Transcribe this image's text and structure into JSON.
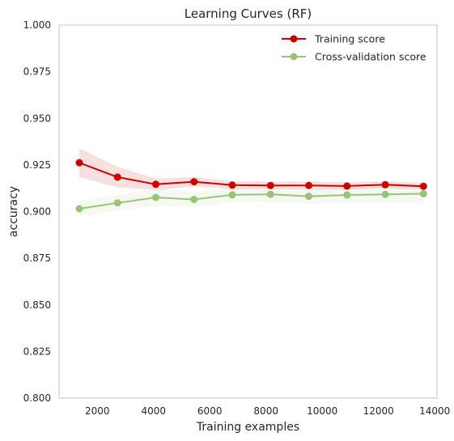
{
  "chart_data": {
    "type": "line",
    "title": "Learning Curves (RF)",
    "xlabel": "Training examples",
    "ylabel": "accuracy",
    "xlim": [
      640,
      14080
    ],
    "ylim": [
      0.8,
      1.0
    ],
    "xticks": [
      2000,
      4000,
      6000,
      8000,
      10000,
      12000,
      14000
    ],
    "yticks": [
      0.8,
      0.825,
      0.85,
      0.875,
      0.9,
      0.925,
      0.95,
      0.975,
      1.0
    ],
    "grid": false,
    "legend_position": "top-right",
    "x": [
      1360,
      2720,
      4080,
      5440,
      6800,
      8160,
      9520,
      10880,
      12240,
      13600
    ],
    "series": [
      {
        "name": "Training score",
        "color": "#cc0000",
        "values": [
          0.9262,
          0.9185,
          0.9146,
          0.916,
          0.9142,
          0.914,
          0.914,
          0.9137,
          0.9144,
          0.9136
        ],
        "band_lower": [
          0.9185,
          0.913,
          0.9115,
          0.9135,
          0.912,
          0.912,
          0.9118,
          0.9117,
          0.9125,
          0.9118
        ],
        "band_upper": [
          0.934,
          0.924,
          0.9177,
          0.9185,
          0.9164,
          0.916,
          0.9162,
          0.9157,
          0.9163,
          0.9154
        ]
      },
      {
        "name": "Cross-validation score",
        "color": "#99c477",
        "values": [
          0.9015,
          0.9047,
          0.9076,
          0.9065,
          0.909,
          0.9093,
          0.9082,
          0.9089,
          0.9092,
          0.9096
        ],
        "band_lower": [
          0.8975,
          0.9005,
          0.903,
          0.9025,
          0.905,
          0.905,
          0.9043,
          0.9046,
          0.9046,
          0.9046
        ],
        "band_upper": [
          0.9055,
          0.909,
          0.912,
          0.9105,
          0.913,
          0.9136,
          0.9121,
          0.9132,
          0.9138,
          0.9146
        ]
      }
    ]
  }
}
